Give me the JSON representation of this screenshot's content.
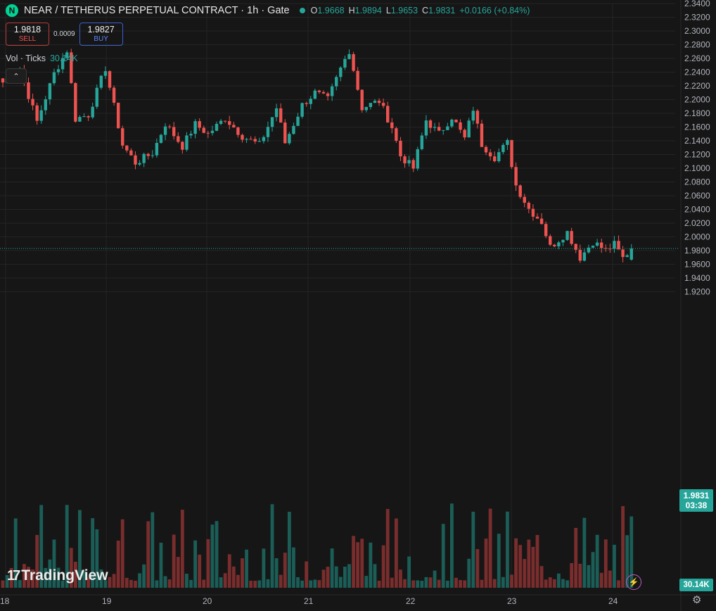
{
  "header": {
    "logo_letter": "N",
    "symbol": "NEAR / TETHERUS PERPETUAL CONTRACT · 1h · Gate",
    "ohlc": {
      "o_label": "O",
      "o": "1.9668",
      "h_label": "H",
      "h": "1.9894",
      "l_label": "L",
      "l": "1.9653",
      "c_label": "C",
      "c": "1.9831",
      "change": "+0.0166 (+0.84%)"
    }
  },
  "trade": {
    "sell_price": "1.9818",
    "sell_label": "SELL",
    "spread": "0.0009",
    "buy_price": "1.9827",
    "buy_label": "BUY"
  },
  "volume_legend": {
    "label": "Vol · Ticks",
    "value": "30.14K"
  },
  "collapse_glyph": "⌃",
  "last_price": {
    "price": "1.9831",
    "countdown": "03:38"
  },
  "last_volume": "30.14K",
  "brand": {
    "mark": "17",
    "name": "TradingView"
  },
  "icons": {
    "bolt": "lightning-icon",
    "gear": "settings-icon"
  },
  "colors": {
    "up": "#26a69a",
    "down": "#ef5350",
    "up_vol": "#1b5e57",
    "down_vol": "#7a2d2d",
    "background": "#161616",
    "grid": "#242424"
  },
  "chart_data": {
    "type": "candlestick",
    "interval": "1h",
    "y_ticks": [
      "2.3400",
      "2.3200",
      "2.3000",
      "2.2800",
      "2.2600",
      "2.2400",
      "2.2200",
      "2.2000",
      "2.1800",
      "2.1600",
      "2.1400",
      "2.1200",
      "2.1000",
      "2.0800",
      "2.0600",
      "2.0400",
      "2.0200",
      "2.0000",
      "1.9800",
      "1.9600",
      "1.9400",
      "1.9200"
    ],
    "ylim": [
      1.918,
      2.343
    ],
    "x_ticks": [
      "18",
      "19",
      "20",
      "21",
      "22",
      "23",
      "24"
    ],
    "candles_first_label_index": [
      0,
      24,
      48,
      72,
      96,
      120,
      144
    ],
    "volume_visible_max": 1.0,
    "keypoints": [
      [
        0,
        2.225
      ],
      [
        4,
        2.244
      ],
      [
        8,
        2.168
      ],
      [
        12,
        2.238
      ],
      [
        15,
        2.272
      ],
      [
        17,
        2.172
      ],
      [
        20,
        2.178
      ],
      [
        24,
        2.246
      ],
      [
        28,
        2.134
      ],
      [
        31,
        2.108
      ],
      [
        35,
        2.122
      ],
      [
        38,
        2.165
      ],
      [
        42,
        2.132
      ],
      [
        45,
        2.164
      ],
      [
        48,
        2.15
      ],
      [
        52,
        2.173
      ],
      [
        56,
        2.147
      ],
      [
        60,
        2.134
      ],
      [
        64,
        2.188
      ],
      [
        66,
        2.137
      ],
      [
        70,
        2.192
      ],
      [
        73,
        2.21
      ],
      [
        76,
        2.2
      ],
      [
        79,
        2.245
      ],
      [
        81,
        2.272
      ],
      [
        84,
        2.188
      ],
      [
        88,
        2.198
      ],
      [
        91,
        2.16
      ],
      [
        93,
        2.118
      ],
      [
        96,
        2.1
      ],
      [
        99,
        2.17
      ],
      [
        102,
        2.15
      ],
      [
        105,
        2.175
      ],
      [
        108,
        2.143
      ],
      [
        110,
        2.187
      ],
      [
        112,
        2.135
      ],
      [
        115,
        2.116
      ],
      [
        118,
        2.137
      ],
      [
        120,
        2.075
      ],
      [
        123,
        2.041
      ],
      [
        126,
        2.022
      ],
      [
        128,
        1.985
      ],
      [
        132,
        2.007
      ],
      [
        135,
        1.97
      ],
      [
        138,
        1.993
      ],
      [
        141,
        1.98
      ],
      [
        143,
        1.989
      ],
      [
        145,
        1.969
      ],
      [
        147,
        1.983
      ]
    ],
    "last_candle": {
      "open": 1.9668,
      "high": 1.9894,
      "low": 1.9653,
      "close": 1.9831
    }
  }
}
